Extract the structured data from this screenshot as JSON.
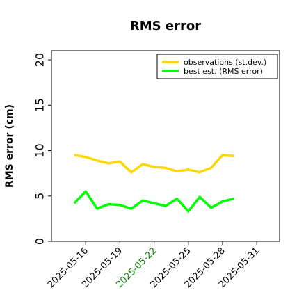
{
  "chart_data": {
    "type": "line",
    "title": "RMS error",
    "xlabel": "",
    "ylabel": "RMS error (cm)",
    "ylim": [
      0,
      21
    ],
    "yticks": [
      0,
      5,
      10,
      15,
      20
    ],
    "xlim": [
      "2025-05-13",
      "2025-06-02"
    ],
    "xtick_dates": [
      "2025-05-16",
      "2025-05-19",
      "2025-05-22",
      "2025-05-25",
      "2025-05-28",
      "2025-05-31"
    ],
    "xtick_labels": [
      "2025-05-16",
      "2025-05-19",
      "2025-05-22",
      "2025-05-25",
      "2025-05-28",
      "2025-05-31"
    ],
    "xtick_colors": [
      "#000000",
      "#000000",
      "#008000",
      "#000000",
      "#000000",
      "#000000"
    ],
    "x": [
      "2025-05-15",
      "2025-05-16",
      "2025-05-17",
      "2025-05-18",
      "2025-05-19",
      "2025-05-20",
      "2025-05-21",
      "2025-05-22",
      "2025-05-23",
      "2025-05-24",
      "2025-05-25",
      "2025-05-26",
      "2025-05-27",
      "2025-05-28",
      "2025-05-29"
    ],
    "series": [
      {
        "name": "observations (st.dev.)",
        "color": "#ffd700",
        "values": [
          9.5,
          9.3,
          8.9,
          8.6,
          8.8,
          7.6,
          8.5,
          8.2,
          8.1,
          7.7,
          7.9,
          7.6,
          8.1,
          9.5,
          9.4
        ]
      },
      {
        "name": "best est. (RMS error)",
        "color": "#00ff00",
        "values": [
          4.2,
          5.5,
          3.6,
          4.1,
          4.0,
          3.6,
          4.5,
          4.2,
          3.9,
          4.7,
          3.3,
          4.9,
          3.7,
          4.4,
          4.7
        ]
      }
    ],
    "legend": "top-right",
    "grid": false
  }
}
